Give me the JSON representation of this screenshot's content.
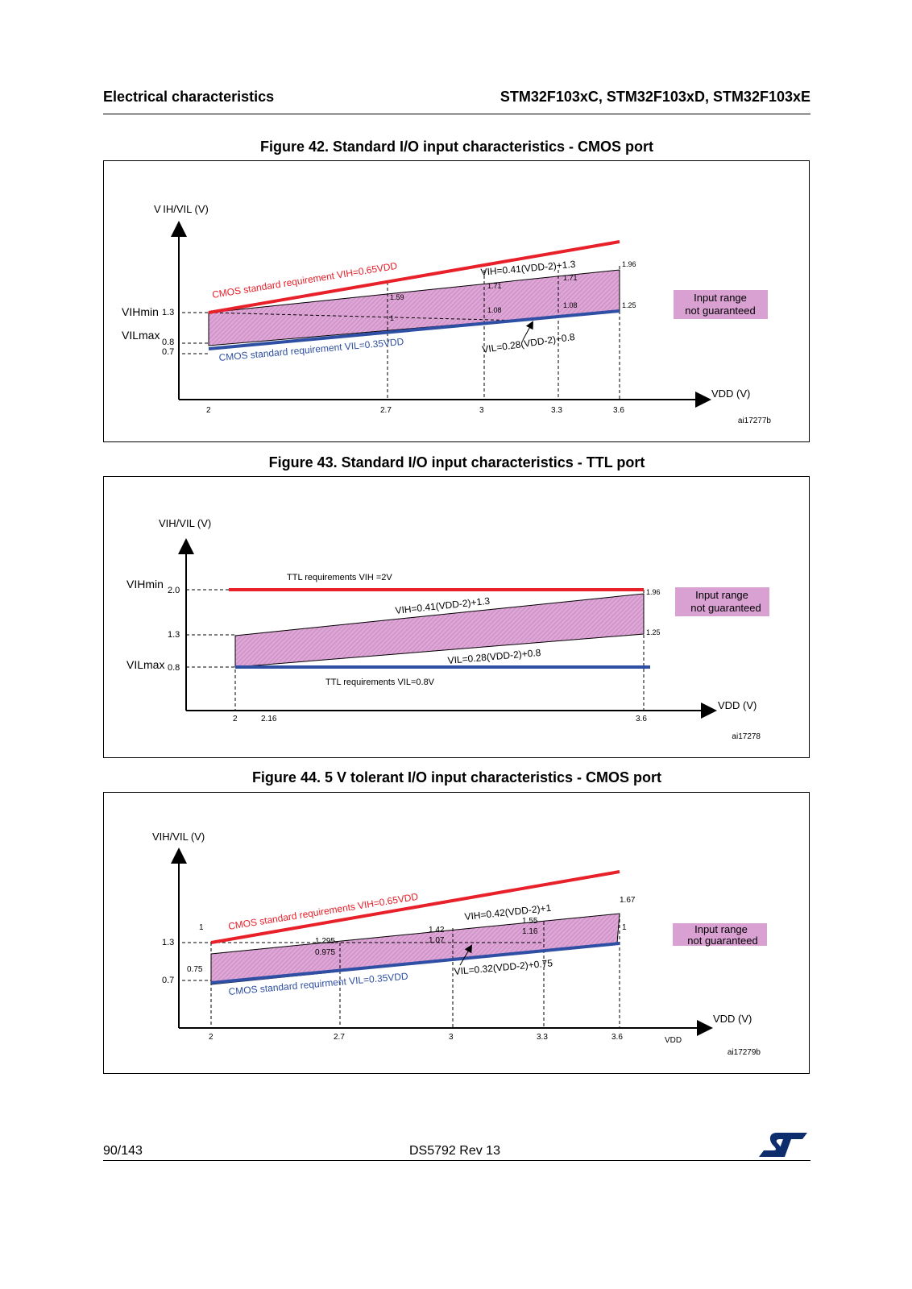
{
  "header": {
    "section": "Electrical characteristics",
    "device": "STM32F103xC, STM32F103xD, STM32F103xE"
  },
  "figures": [
    {
      "title": "Figure 42. Standard I/O input characteristics - CMOS port",
      "code": "ai17277b",
      "y_label": "V IH/VIL (V)",
      "x_label": "VDD (V)",
      "x_ticks": [
        "2",
        "2.7",
        "3",
        "3.3",
        "3.6"
      ],
      "y_ticks": [
        "1.3",
        "0.8",
        "0.7"
      ],
      "y_names": [
        "VIHmin",
        "VILmax"
      ],
      "cmos_vih_label": "CMOS standard requirement VIH=0.65VDD",
      "cmos_vil_label": "CMOS standard requirement VIL=0.35VDD",
      "vih_formula": "VIH=0.41(VDD-2)+1.3",
      "vil_formula": "VIL=0.28(VDD-2)+0.8",
      "value_labels": [
        "1.59",
        "1",
        "1.71",
        "1.08",
        "1.71",
        "1.08",
        "1.96",
        "1.25"
      ],
      "legend": "Input range not guaranteed"
    },
    {
      "title": "Figure 43. Standard I/O input characteristics - TTL port",
      "code": "ai17278",
      "y_label": "VIH/VIL (V)",
      "x_label": "VDD (V)",
      "x_ticks": [
        "2",
        "2.16",
        "3.6"
      ],
      "y_ticks": [
        "2.0",
        "1.3",
        "0.8"
      ],
      "y_names": [
        "VIHmin",
        "VILmax"
      ],
      "ttl_vih_label": "TTL requirements   VIH =2V",
      "ttl_vil_label": "TTL requirements    VIL=0.8V",
      "vih_formula": "VIH=0.41(VDD-2)+1.3",
      "vil_formula": "VIL=0.28(VDD-2)+0.8",
      "value_labels": [
        "1.96",
        "1.25"
      ],
      "legend": "Input range not guaranteed"
    },
    {
      "title": "Figure 44. 5 V tolerant I/O input characteristics - CMOS port",
      "code": "ai17279b",
      "y_label": "VIH/VIL (V)",
      "x_label": "VDD (V)",
      "x_extra": "VDD",
      "x_ticks": [
        "2",
        "2.7",
        "3",
        "3.3",
        "3.6"
      ],
      "y_ticks": [
        "1.3",
        "0.7"
      ],
      "cmos_vih_label": "CMOS standard requirements VIH=0.65VDD",
      "cmos_vil_label": "CMOS standard requirment VIL=0.35VDD",
      "vih_formula": "VIH=0.42(VDD-2)+1",
      "vil_formula": "VIL=0.32(VDD-2)+0.75",
      "value_labels": [
        "1",
        "0.75",
        "1.295",
        "0.975",
        "1.42",
        "1.07",
        "1.55",
        "1.16",
        "1.67",
        "1"
      ],
      "legend": "Input range not guaranteed"
    }
  ],
  "footer": {
    "page": "90/143",
    "doc": "DS5792 Rev 13"
  },
  "colors": {
    "red": "#e8202a",
    "blue": "#2e4fa3",
    "band": "#d9a0d2",
    "legend_bg": "#d9a0d2"
  }
}
